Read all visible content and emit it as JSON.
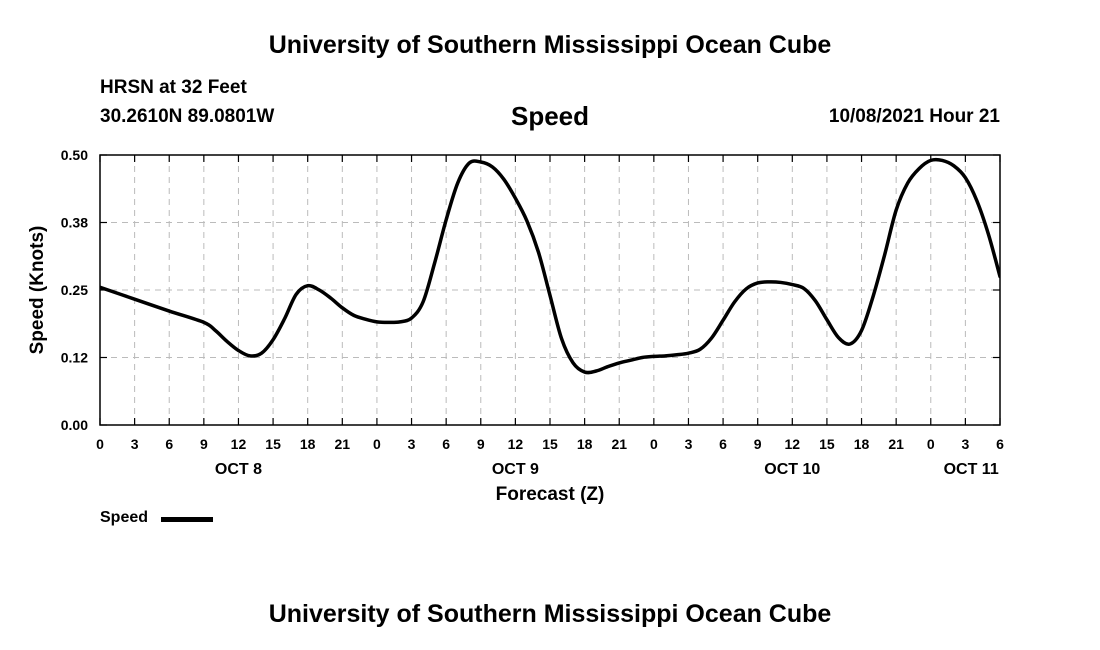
{
  "header": {
    "title": "University of Southern Mississippi Ocean Cube",
    "station": "HRSN at 32 Feet",
    "coordinates": "30.2610N  89.0801W",
    "variable": "Speed",
    "datetime": "10/08/2021 Hour 21"
  },
  "footer": {
    "title": "University of Southern Mississippi Ocean Cube"
  },
  "legend": {
    "label": "Speed"
  },
  "chart_data": {
    "type": "line",
    "title": "Speed",
    "xlabel": "Forecast (Z)",
    "ylabel": "Speed (Knots)",
    "xlim": [
      0,
      78
    ],
    "ylim": [
      0,
      0.5
    ],
    "x_unit": "hours from OCT 8 00Z",
    "y_ticks": [
      "0.00",
      "0.12",
      "0.25",
      "0.38",
      "0.50"
    ],
    "y_tick_values": [
      0,
      0.125,
      0.25,
      0.375,
      0.5
    ],
    "x_ticks": [
      {
        "hour": 0,
        "label": "0"
      },
      {
        "hour": 3,
        "label": "3"
      },
      {
        "hour": 6,
        "label": "6"
      },
      {
        "hour": 9,
        "label": "9"
      },
      {
        "hour": 12,
        "label": "12"
      },
      {
        "hour": 15,
        "label": "15"
      },
      {
        "hour": 18,
        "label": "18"
      },
      {
        "hour": 21,
        "label": "21"
      },
      {
        "hour": 24,
        "label": "0"
      },
      {
        "hour": 27,
        "label": "3"
      },
      {
        "hour": 30,
        "label": "6"
      },
      {
        "hour": 33,
        "label": "9"
      },
      {
        "hour": 36,
        "label": "12"
      },
      {
        "hour": 39,
        "label": "15"
      },
      {
        "hour": 42,
        "label": "18"
      },
      {
        "hour": 45,
        "label": "21"
      },
      {
        "hour": 48,
        "label": "0"
      },
      {
        "hour": 51,
        "label": "3"
      },
      {
        "hour": 54,
        "label": "6"
      },
      {
        "hour": 57,
        "label": "9"
      },
      {
        "hour": 60,
        "label": "12"
      },
      {
        "hour": 63,
        "label": "15"
      },
      {
        "hour": 66,
        "label": "18"
      },
      {
        "hour": 69,
        "label": "21"
      },
      {
        "hour": 72,
        "label": "0"
      },
      {
        "hour": 75,
        "label": "3"
      },
      {
        "hour": 78,
        "label": "6"
      }
    ],
    "day_labels": [
      {
        "hour": 12,
        "label": "OCT 8"
      },
      {
        "hour": 36,
        "label": "OCT 9"
      },
      {
        "hour": 60,
        "label": "OCT 10"
      },
      {
        "hour": 75.5,
        "label": "OCT 11"
      }
    ],
    "grid": true,
    "series": [
      {
        "name": "Speed",
        "x": [
          0,
          3,
          6,
          9,
          10,
          11,
          12,
          13,
          14,
          15,
          16,
          17,
          18,
          19,
          20,
          21,
          22,
          23,
          24,
          25,
          26,
          27,
          28,
          29,
          30,
          31,
          32,
          33,
          34,
          35,
          36,
          37,
          38,
          39,
          40,
          41,
          42,
          43,
          44,
          45,
          46,
          47,
          48,
          49,
          50,
          51,
          52,
          53,
          54,
          55,
          56,
          57,
          58,
          59,
          60,
          61,
          62,
          63,
          64,
          65,
          66,
          67,
          68,
          69,
          70,
          71,
          72,
          73,
          74,
          75,
          76,
          77,
          78
        ],
        "values": [
          0.255,
          0.233,
          0.211,
          0.19,
          0.175,
          0.155,
          0.138,
          0.128,
          0.133,
          0.158,
          0.197,
          0.242,
          0.258,
          0.25,
          0.235,
          0.217,
          0.203,
          0.196,
          0.191,
          0.19,
          0.191,
          0.198,
          0.228,
          0.3,
          0.38,
          0.448,
          0.485,
          0.487,
          0.478,
          0.455,
          0.42,
          0.378,
          0.32,
          0.24,
          0.16,
          0.115,
          0.098,
          0.1,
          0.108,
          0.115,
          0.12,
          0.125,
          0.127,
          0.128,
          0.13,
          0.133,
          0.14,
          0.161,
          0.194,
          0.228,
          0.252,
          0.263,
          0.265,
          0.264,
          0.26,
          0.253,
          0.23,
          0.195,
          0.162,
          0.15,
          0.175,
          0.238,
          0.315,
          0.398,
          0.448,
          0.475,
          0.49,
          0.49,
          0.48,
          0.458,
          0.415,
          0.353,
          0.275
        ]
      }
    ]
  }
}
